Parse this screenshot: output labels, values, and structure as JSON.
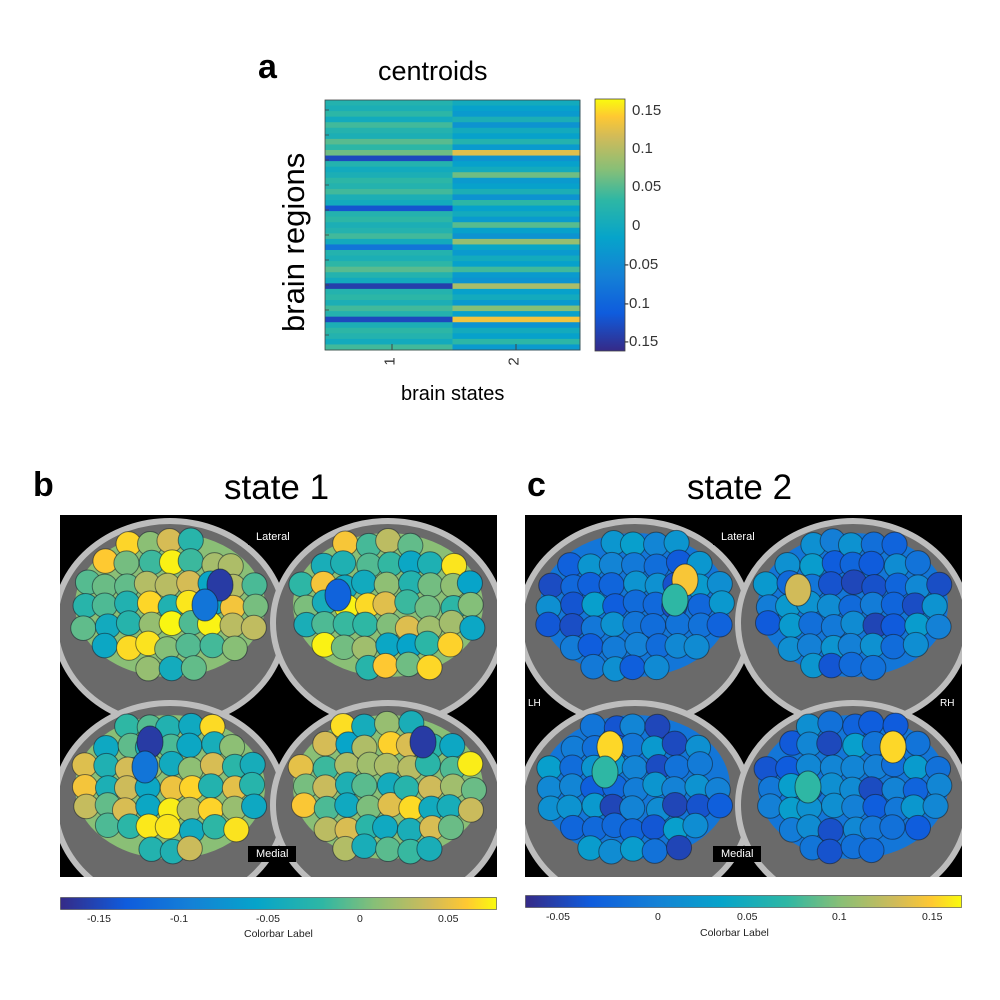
{
  "panel_a": {
    "letter": "a",
    "title": "centroids",
    "ylabel": "brain regions",
    "xlabel": "brain states",
    "x_ticks": [
      "1",
      "2"
    ],
    "colorbar_ticks": [
      "0.15",
      "0.1",
      "0.05",
      "0",
      "-0.05",
      "-0.1",
      "-0.15"
    ]
  },
  "panel_b": {
    "letter": "b",
    "title": "state 1",
    "lateral_label": "Lateral",
    "medial_label": "Medial",
    "colorbar_ticks": [
      "-0.15",
      "-0.1",
      "-0.05",
      "0",
      "0.05"
    ],
    "colorbar_label": "Colorbar Label"
  },
  "panel_c": {
    "letter": "c",
    "title": "state 2",
    "lateral_label": "Lateral",
    "medial_label": "Medial",
    "lh_label": "LH",
    "rh_label": "RH",
    "colorbar_ticks": [
      "-0.05",
      "0",
      "0.05",
      "0.1",
      "0.15"
    ],
    "colorbar_label": "Colorbar Label"
  },
  "chart_data": {
    "type": "heatmap",
    "title": "centroids",
    "xlabel": "brain states",
    "ylabel": "brain regions",
    "x_categories": [
      "1",
      "2"
    ],
    "color_range": [
      -0.16,
      0.16
    ],
    "colormap": "parula",
    "series": [
      {
        "values": [
          0.02,
          0.01,
          0.03,
          0.0,
          0.04,
          0.02,
          0.01,
          0.05,
          0.03,
          0.06,
          -0.13,
          0.02,
          0.0,
          0.01,
          0.03,
          0.02,
          0.04,
          0.01,
          0.0,
          -0.12,
          0.02,
          0.03,
          0.01,
          0.02,
          0.04,
          0.0,
          -0.08,
          0.02,
          0.01,
          0.03,
          0.05,
          0.02,
          0.0,
          -0.14,
          0.02,
          0.03,
          0.01,
          0.04,
          0.02,
          -0.13,
          0.01,
          0.03,
          0.02,
          0.0,
          0.04
        ]
      },
      {
        "values": [
          0.0,
          -0.02,
          -0.03,
          0.01,
          -0.04,
          0.0,
          -0.02,
          0.02,
          -0.03,
          0.12,
          -0.04,
          -0.02,
          0.0,
          0.06,
          -0.03,
          -0.02,
          0.01,
          -0.04,
          0.03,
          -0.02,
          0.0,
          -0.03,
          0.05,
          -0.02,
          -0.04,
          0.08,
          -0.01,
          -0.03,
          0.0,
          -0.02,
          0.04,
          -0.03,
          -0.04,
          0.09,
          -0.02,
          0.0,
          -0.03,
          0.07,
          -0.02,
          0.13,
          -0.04,
          0.0,
          -0.02,
          0.03,
          -0.03
        ]
      }
    ]
  },
  "colors": {
    "parula_low": "#352a87",
    "parula_mid": "#21b5b0",
    "parula_high": "#f9fb0e"
  }
}
